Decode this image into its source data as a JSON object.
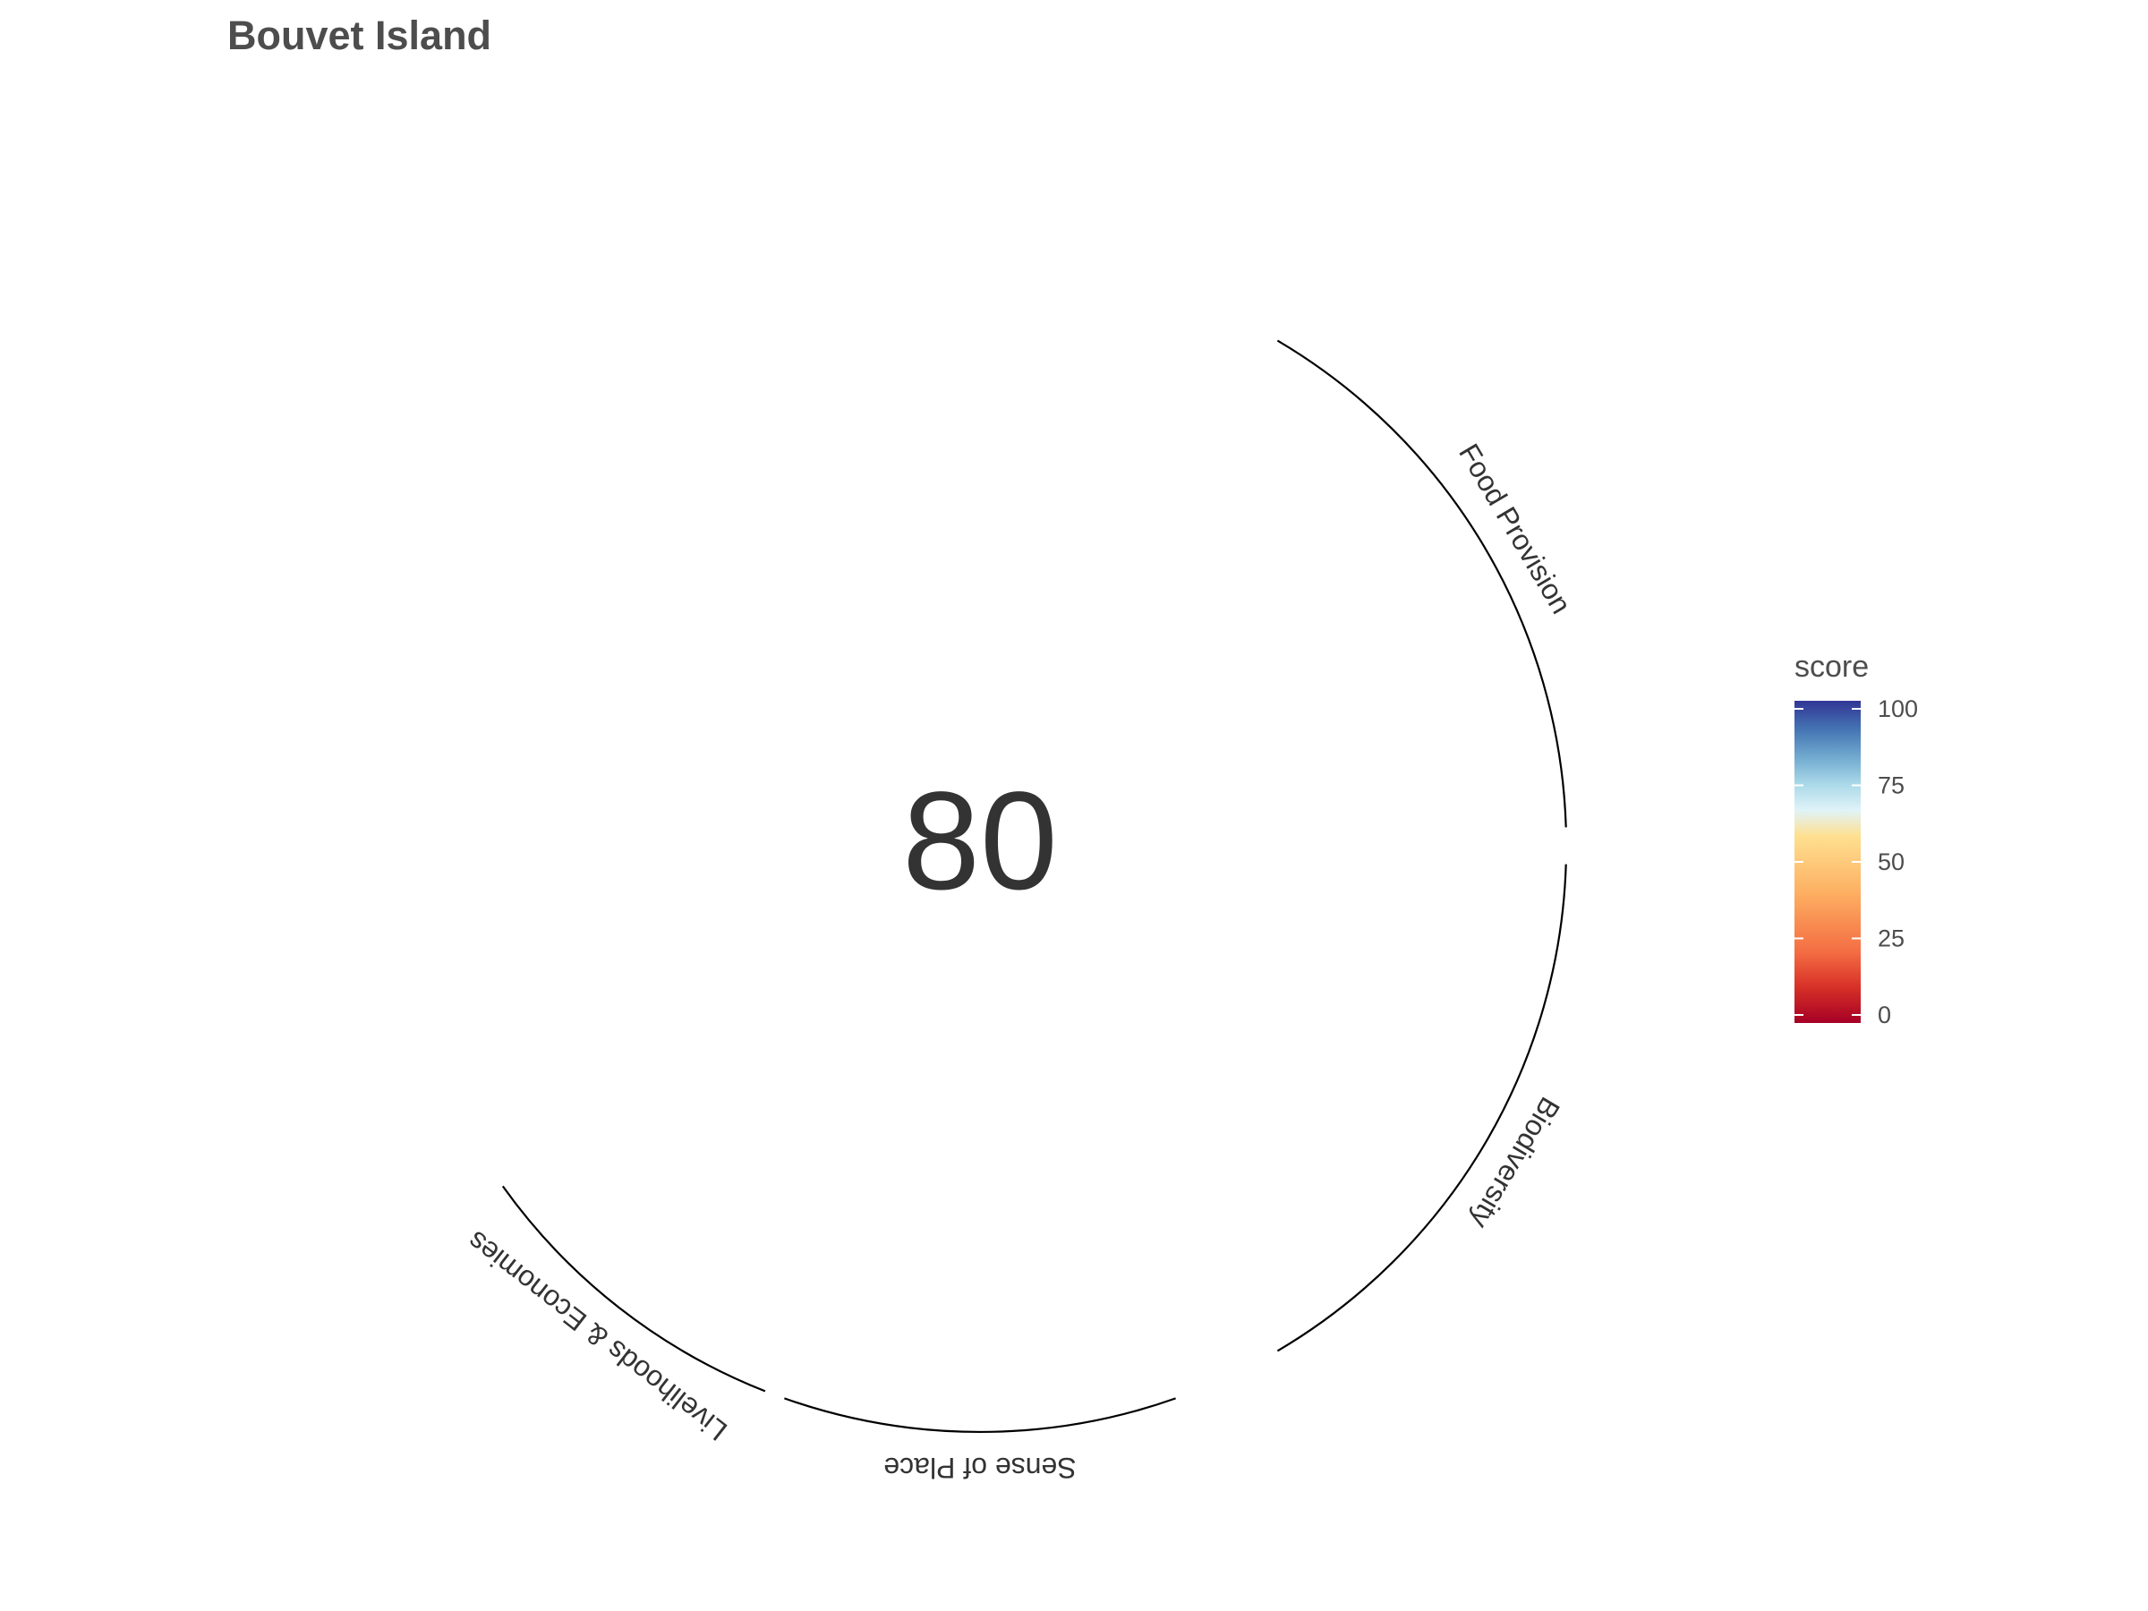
{
  "chart_data": {
    "type": "pie",
    "title": "Bouvet Island",
    "center_value": "80",
    "goals": [
      {
        "label": "Food Provision",
        "score": null
      },
      {
        "label": "Biodiversity",
        "score": null
      },
      {
        "label": "Sense of Place",
        "score": null
      },
      {
        "label": "Livelihoods & Economies",
        "score": null
      }
    ],
    "legend": {
      "title": "score",
      "ticks": [
        "100",
        "75",
        "50",
        "25",
        "0"
      ],
      "range": [
        0,
        100
      ],
      "colors": [
        "#A50026",
        "#D73027",
        "#F46D43",
        "#FDAE61",
        "#FEE090",
        "#E0F3F8",
        "#ABD9E9",
        "#74ADD1",
        "#4575B4",
        "#313695"
      ]
    }
  }
}
